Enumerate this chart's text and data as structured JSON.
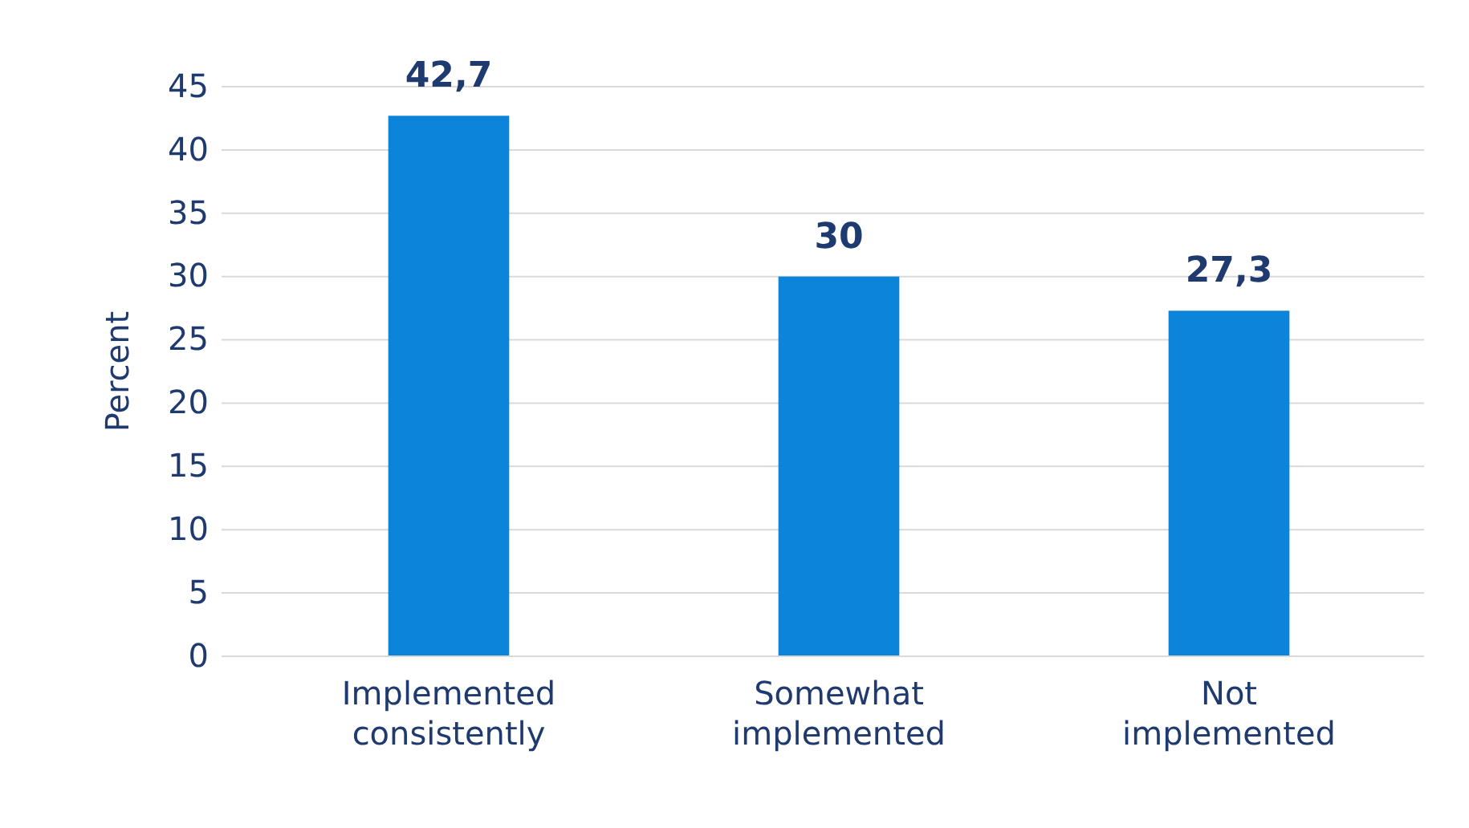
{
  "chart_data": {
    "type": "bar",
    "ylabel": "Percent",
    "categories": [
      "Implemented consistently",
      "Somewhat implemented",
      "Not implemented"
    ],
    "values": [
      42.7,
      30,
      27.3
    ],
    "color": "#0b84d9",
    "value_labels": [
      "42,7",
      "30",
      "27,3"
    ],
    "ylim": [
      0,
      45
    ],
    "yticks": [
      0,
      5,
      10,
      15,
      20,
      25,
      30,
      35,
      40,
      45
    ],
    "grid": "y"
  }
}
